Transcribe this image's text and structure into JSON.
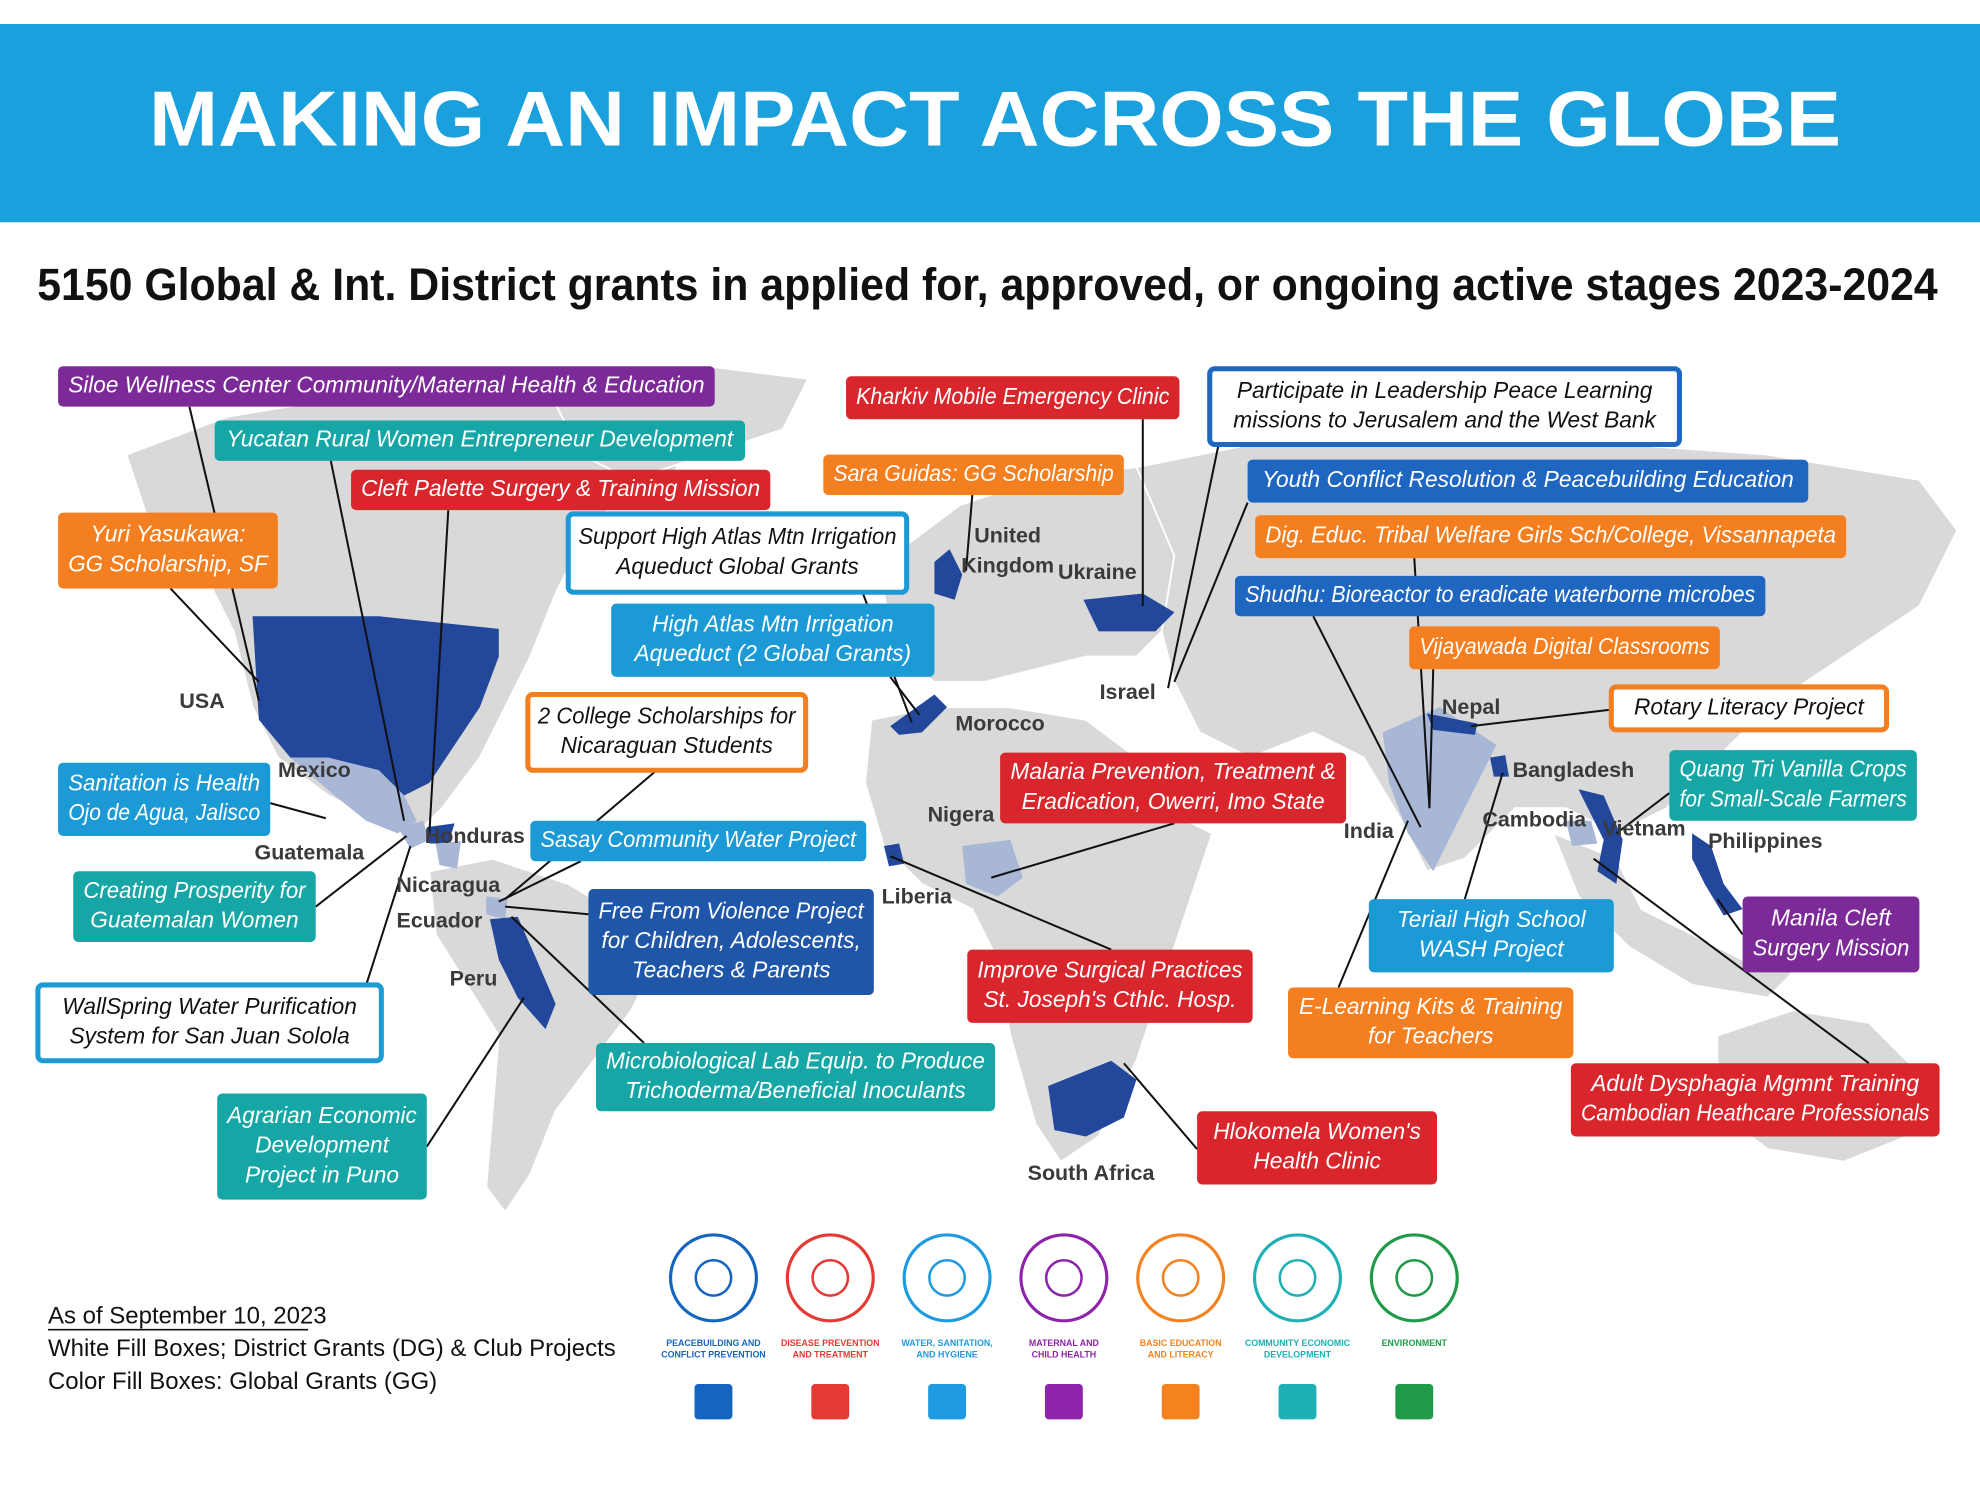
{
  "header": {
    "title": "MAKING AN IMPACT ACROSS THE GLOBE"
  },
  "subtitle": "5150 Global & Int. District grants in applied for, approved, or ongoing active stages 2023-2024",
  "annotations": [
    [
      "Siloe Wellness Center Community/Maternal Health & Education"
    ],
    [
      "Yucatan Rural Women Entrepreneur Development"
    ],
    [
      "Cleft Palette Surgery & Training Mission"
    ],
    [
      "Yuri Yasukawa:",
      "GG Scholarship, SF"
    ],
    [
      "Support High Atlas Mtn Irrigation",
      "Aqueduct Global Grants"
    ],
    [
      "High Atlas Mtn Irrigation",
      "Aqueduct (2 Global Grants)"
    ],
    [
      "2 College Scholarships for",
      "Nicaraguan Students"
    ],
    [
      "Sanitation is Health",
      "Ojo de Agua, Jalisco"
    ],
    [
      "Creating Prosperity for",
      "Guatemalan Women"
    ],
    [
      "WallSpring Water Purification",
      "System for San Juan Solola"
    ],
    [
      "Agrarian Economic",
      "Development",
      "Project in Puno"
    ],
    [
      "Sasay Community Water Project"
    ],
    [
      "Free From Violence Project",
      "for Children, Adolescents,",
      "Teachers & Parents"
    ],
    [
      "Microbiological Lab Equip. to Produce",
      "Trichoderma/Beneficial Inoculants"
    ],
    [
      "Kharkiv Mobile Emergency Clinic"
    ],
    [
      "Sara Guidas: GG Scholarship"
    ],
    [
      "Participate in Leadership Peace Learning",
      "missions to Jerusalem and the West Bank"
    ],
    [
      "Youth Conflict Resolution & Peacebuilding Education"
    ],
    [
      "Dig. Educ. Tribal Welfare Girls Sch/College, Vissannapeta"
    ],
    [
      "Shudhu: Bioreactor to eradicate waterborne microbes"
    ],
    [
      "Vijayawada Digital Classrooms"
    ],
    [
      "Rotary Literacy Project"
    ],
    [
      "Malaria Prevention, Treatment &",
      "Eradication, Owerri, Imo State"
    ],
    [
      "Quang Tri Vanilla Crops",
      "for Small-Scale Farmers"
    ],
    [
      "Manila Cleft",
      "Surgery Mission"
    ],
    [
      "Teriail High School",
      "WASH Project"
    ],
    [
      "Improve Surgical Practices",
      "St. Joseph's Cthlc. Hosp."
    ],
    [
      "E-Learning Kits & Training",
      "for Teachers"
    ],
    [
      "Adult Dysphagia Mgmnt Training",
      "Cambodian Heathcare Professionals"
    ],
    [
      "Hlokomela Women's",
      "Health Clinic"
    ]
  ],
  "countries": [
    [
      "USA"
    ],
    [
      "Mexico"
    ],
    [
      "Guatemala"
    ],
    [
      "Honduras"
    ],
    [
      "Nicaragua"
    ],
    [
      "Ecuador"
    ],
    [
      "Peru"
    ],
    [
      "United",
      "Kingdom"
    ],
    [
      "Ukraine"
    ],
    [
      "Morocco"
    ],
    [
      "Israel"
    ],
    [
      "Nigera"
    ],
    [
      "Liberia"
    ],
    [
      "South Africa"
    ],
    [
      "Nepal"
    ],
    [
      "Bangladesh"
    ],
    [
      "India"
    ],
    [
      "Cambodia"
    ],
    [
      "Vietnam"
    ],
    [
      "Philippines"
    ]
  ],
  "legend": [
    [
      "PEACEBUILDING AND",
      "CONFLICT PREVENTION"
    ],
    [
      "DISEASE PREVENTION",
      "AND TREATMENT"
    ],
    [
      "WATER, SANITATION,",
      "AND HYGIENE"
    ],
    [
      "MATERNAL AND",
      "CHILD HEALTH"
    ],
    [
      "BASIC EDUCATION",
      "AND LITERACY"
    ],
    [
      "COMMUNITY ECONOMIC",
      "DEVELOPMENT"
    ],
    [
      "ENVIRONMENT"
    ]
  ],
  "footnotes": [
    "As of September 10, 2023",
    "White Fill Boxes; District Grants (DG) & Club Projects",
    "Color Fill Boxes: Global Grants (GG)"
  ]
}
